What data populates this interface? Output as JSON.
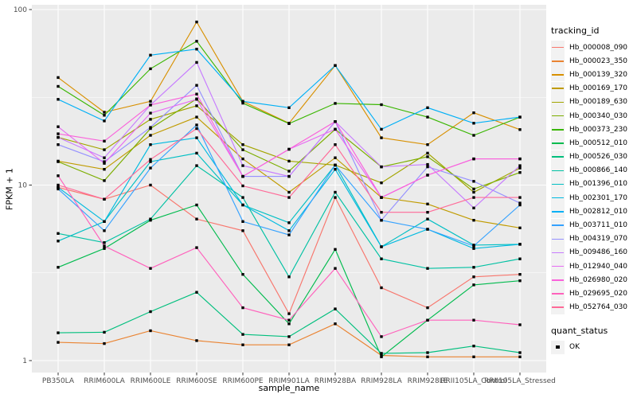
{
  "chart_data": {
    "type": "line",
    "title": "",
    "xlabel": "sample_name",
    "ylabel": "FPKM + 1",
    "y_scale": "log10",
    "y_ticks": [
      1,
      10,
      100
    ],
    "ylim": [
      1,
      100
    ],
    "grid": true,
    "panel_bg": "#EBEBEB",
    "grid_color": "#FFFFFF",
    "tick_label_color": "#4D4D4D",
    "marker_color": "#000000",
    "legend_title": "tracking_id",
    "legend_position": "right",
    "legend2_title": "quant_status",
    "legend2_items": [
      {
        "label": "OK",
        "marker": "black-square"
      }
    ],
    "categories": [
      "PB350LA",
      "RRIM600LA",
      "RRIM600LE",
      "RRIM600SE",
      "RRIM600PE",
      "RRIM901LA",
      "RRIM928BA",
      "RRIM928LA",
      "RRIM928LE",
      "RRII105LA_Control",
      "RRII105LA_Stressed"
    ],
    "series": [
      {
        "name": "Hb_000008_090",
        "color": "#F8766D",
        "values": [
          9.7,
          8.3,
          10.0,
          6.4,
          5.5,
          1.85,
          8.5,
          2.6,
          2.0,
          3.0,
          3.1
        ]
      },
      {
        "name": "Hb_000023_350",
        "color": "#EA8331",
        "values": [
          1.27,
          1.25,
          1.48,
          1.3,
          1.23,
          1.23,
          1.62,
          1.07,
          1.05,
          1.05,
          1.05
        ]
      },
      {
        "name": "Hb_000139_320",
        "color": "#D89000",
        "values": [
          41,
          26,
          30,
          85,
          30,
          22.5,
          48,
          18.6,
          17,
          25.8,
          20.7
        ]
      },
      {
        "name": "Hb_000169_170",
        "color": "#C09B00",
        "values": [
          13.7,
          12.3,
          19.2,
          24.4,
          14.1,
          9.1,
          14.3,
          8.5,
          7.8,
          6.3,
          5.7
        ]
      },
      {
        "name": "Hb_000189_630",
        "color": "#A3A500",
        "values": [
          18.7,
          15.9,
          23.7,
          28.3,
          17.0,
          13.7,
          13.0,
          10.3,
          15.2,
          9.1,
          12.5
        ]
      },
      {
        "name": "Hb_000340_030",
        "color": "#7CAE00",
        "values": [
          13.6,
          10.6,
          21.0,
          31.0,
          15.9,
          12.0,
          20.8,
          12.7,
          14.5,
          9.5,
          11.8
        ]
      },
      {
        "name": "Hb_000373_230",
        "color": "#39B600",
        "values": [
          36.5,
          25,
          46,
          66,
          29.3,
          22.4,
          29.2,
          28.7,
          24.4,
          19.2,
          24.4
        ]
      },
      {
        "name": "Hb_000512_010",
        "color": "#00BB4E",
        "values": [
          3.4,
          4.35,
          6.3,
          7.7,
          3.1,
          1.62,
          4.3,
          1.05,
          1.7,
          2.7,
          2.85
        ]
      },
      {
        "name": "Hb_000526_030",
        "color": "#00BF7D",
        "values": [
          1.44,
          1.45,
          1.9,
          2.45,
          1.41,
          1.37,
          1.97,
          1.1,
          1.11,
          1.21,
          1.11
        ]
      },
      {
        "name": "Hb_000866_140",
        "color": "#00C1A3",
        "values": [
          5.3,
          4.7,
          6.4,
          12.9,
          8.5,
          3.0,
          9.1,
          3.8,
          3.35,
          3.4,
          3.8
        ]
      },
      {
        "name": "Hb_001396_010",
        "color": "#00BFC4",
        "values": [
          4.8,
          6.2,
          13.6,
          15.2,
          7.7,
          6.1,
          13.0,
          4.45,
          6.4,
          4.55,
          4.6
        ]
      },
      {
        "name": "Hb_002301_170",
        "color": "#00BAE0",
        "values": [
          9.7,
          6.2,
          17.0,
          18.6,
          7.7,
          5.5,
          12.3,
          4.45,
          5.6,
          4.35,
          4.6
        ]
      },
      {
        "name": "Hb_002812_010",
        "color": "#00B0F6",
        "values": [
          30.8,
          23.2,
          55,
          59.5,
          30,
          27.6,
          48,
          20.8,
          27.6,
          22.5,
          24.4
        ]
      },
      {
        "name": "Hb_003711_010",
        "color": "#35A2FF",
        "values": [
          9.5,
          5.5,
          12.5,
          22.0,
          6.2,
          5.2,
          13.0,
          6.3,
          5.6,
          4.5,
          7.7
        ]
      },
      {
        "name": "Hb_004319_070",
        "color": "#9590FF",
        "values": [
          17.0,
          13.6,
          21.3,
          37,
          11.2,
          11.2,
          23,
          6.3,
          12.7,
          10.5,
          7.9
        ]
      },
      {
        "name": "Hb_009486_160",
        "color": "#C77CFF",
        "values": [
          18.7,
          14.3,
          28.6,
          50,
          12.9,
          11.2,
          23,
          12.7,
          13.1,
          7.4,
          12.9
        ]
      },
      {
        "name": "Hb_012940_040",
        "color": "#E76BF3",
        "values": [
          21.5,
          13.3,
          25.7,
          30.8,
          11.2,
          16.0,
          20.8,
          8.5,
          11.4,
          14.1,
          14.1
        ]
      },
      {
        "name": "Hb_026980_020",
        "color": "#FA62DB",
        "values": [
          19.6,
          17.8,
          28.6,
          33,
          11.2,
          16.0,
          23,
          8.5,
          11.4,
          14.1,
          14.1
        ]
      },
      {
        "name": "Hb_029695_020",
        "color": "#FF62BC",
        "values": [
          11.3,
          4.5,
          3.35,
          4.4,
          2.0,
          1.7,
          3.35,
          1.37,
          1.7,
          1.7,
          1.6
        ]
      },
      {
        "name": "Hb_052764_030",
        "color": "#FF6A98",
        "values": [
          10.0,
          8.3,
          14.0,
          21.0,
          9.9,
          8.5,
          17.0,
          7.0,
          7.0,
          8.5,
          8.5
        ]
      }
    ]
  }
}
